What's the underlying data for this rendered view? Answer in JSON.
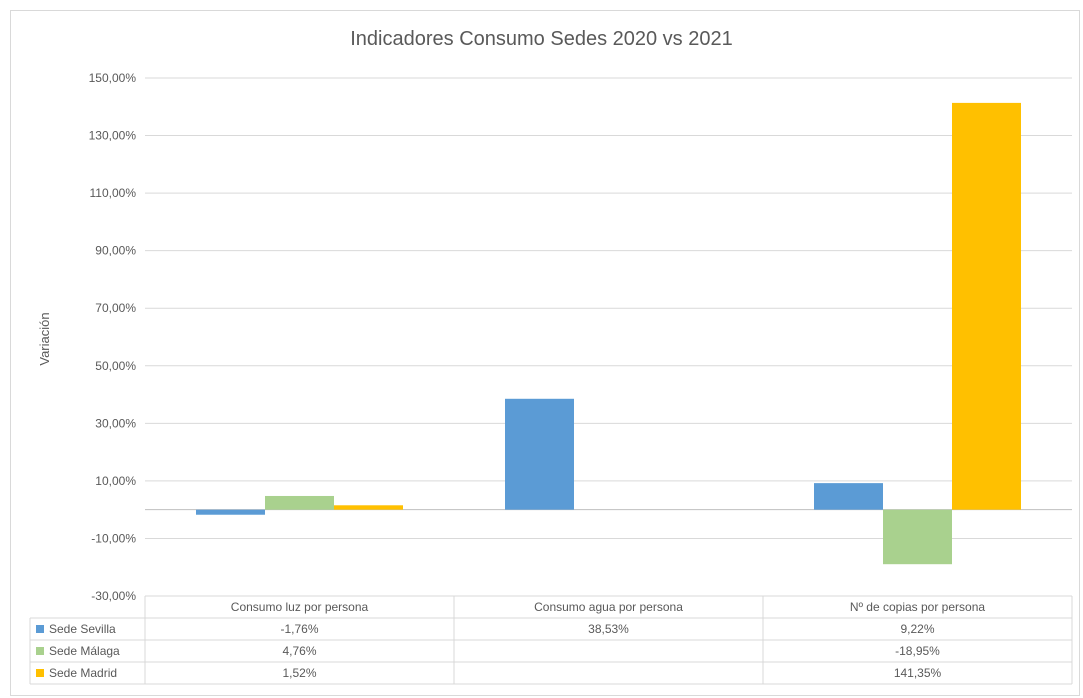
{
  "chart_data": {
    "type": "bar",
    "title": "Indicadores Consumo Sedes 2020 vs 2021",
    "ylabel": "Variación",
    "xlabel": "",
    "ylim": [
      -30,
      150
    ],
    "yticks": [
      150,
      130,
      110,
      90,
      70,
      50,
      30,
      10,
      -10,
      -30
    ],
    "ytick_labels": [
      "150,00%",
      "130,00%",
      "110,00%",
      "90,00%",
      "70,00%",
      "50,00%",
      "30,00%",
      "10,00%",
      "-10,00%",
      "-30,00%"
    ],
    "grid": true,
    "legend": "data-table",
    "categories": [
      "Consumo luz por persona",
      "Consumo agua por persona",
      "Nº de copias por persona"
    ],
    "series": [
      {
        "name": "Sede Sevilla",
        "color": "#5b9bd5",
        "values": [
          -1.76,
          38.53,
          9.22
        ],
        "labels": [
          "-1,76%",
          "38,53%",
          "9,22%"
        ]
      },
      {
        "name": "Sede Málaga",
        "color": "#a9d18e",
        "values": [
          4.76,
          null,
          -18.95
        ],
        "labels": [
          "4,76%",
          "",
          "-18,95%"
        ]
      },
      {
        "name": "Sede Madrid",
        "color": "#ffc000",
        "values": [
          1.52,
          null,
          141.35
        ],
        "labels": [
          "1,52%",
          "",
          "141,35%"
        ]
      }
    ]
  }
}
